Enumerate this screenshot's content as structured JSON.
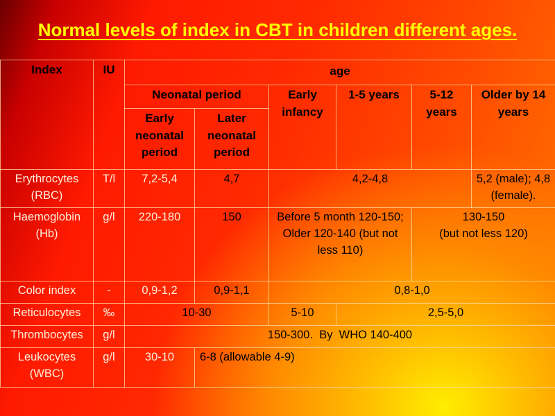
{
  "title": "Normal levels of index in CBT in children different ages.",
  "header": {
    "index": "Index",
    "iu": "IU",
    "age": "age",
    "neonatal": "Neonatal period",
    "early_neonatal": "Early neonatal period",
    "later_neonatal": "Later neonatal period",
    "early_infancy": "Early infancy",
    "y1_5": "1-5 years",
    "y5_12": "5-12 years",
    "older14": "Older by 14 years"
  },
  "rows": {
    "rbc": {
      "name": "Erythrocytes (RBC)",
      "iu": "T/l",
      "early_neo": "7,2-5,4",
      "later_neo": "4,7",
      "mid": "4,2-4,8",
      "older": "5,2 (male); 4,8 (female)."
    },
    "hb": {
      "name": "Haemoglobin (Hb)",
      "iu": "g/l",
      "early_neo": "220-180",
      "later_neo": "150",
      "infancy_1_5_a": "Before 5 month 120-150;",
      "infancy_1_5_b": "Older 120-140 (but not less 110)",
      "rest_a": "130-150",
      "rest_b": "(but not less 120)"
    },
    "ci": {
      "name": "Color index",
      "iu": "-",
      "early_neo": "0,9-1,2",
      "later_neo": "0,9-1,1",
      "rest": "0,8-1,0"
    },
    "ret": {
      "name": "Reticulocytes",
      "iu": "‰",
      "neo": "10-30",
      "infancy": "5-10",
      "rest": "2,5-5,0"
    },
    "plt": {
      "name": "Thrombocytes",
      "iu": "g/l",
      "all": "150-300.  By  WHO 140-400"
    },
    "wbc": {
      "name": "Leukocytes (WBC)",
      "iu": "g/l",
      "early_neo": "30-10",
      "rest": "6-8 (allowable 4-9)"
    }
  }
}
